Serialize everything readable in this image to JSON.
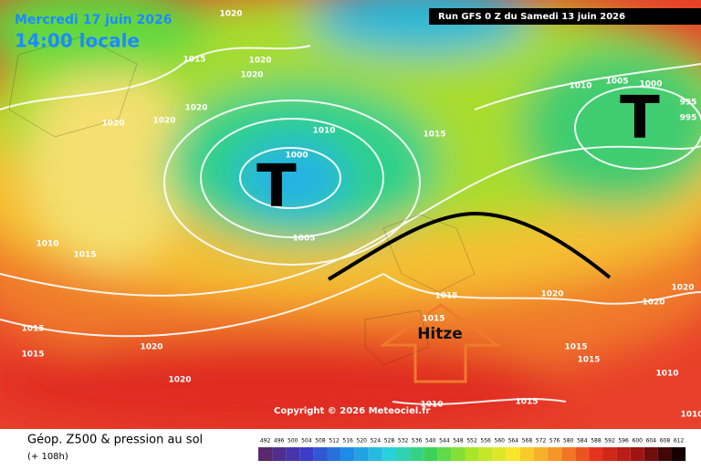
{
  "header": {
    "date": "Mercredi 17 juin 2026",
    "time": "14:00 locale",
    "run": "Run GFS 0 Z du Samedi 13 juin 2026"
  },
  "map": {
    "lows": [
      "T",
      "T"
    ],
    "annotation": "Hitze",
    "copyright": "Copyright © 2026 Meteociel.fr",
    "isobar_labels": [
      1020,
      1015,
      1020,
      1020,
      1020,
      1020,
      1020,
      1010,
      1000,
      1015,
      1010,
      1005,
      1000,
      995,
      995,
      1010,
      1015,
      1005,
      1015,
      1020,
      1020,
      1020,
      1015,
      1015,
      1020,
      1020,
      1015,
      1015,
      1010,
      1010,
      1015,
      1010,
      1015
    ]
  },
  "footer": {
    "title": "Géop. Z500 & pression au sol",
    "lead": "(+ 108h)",
    "scale": [
      492,
      496,
      500,
      504,
      508,
      512,
      516,
      520,
      524,
      528,
      532,
      536,
      540,
      544,
      548,
      552,
      556,
      560,
      564,
      568,
      572,
      576,
      580,
      584,
      588,
      592,
      596,
      600,
      604,
      608,
      612
    ]
  }
}
